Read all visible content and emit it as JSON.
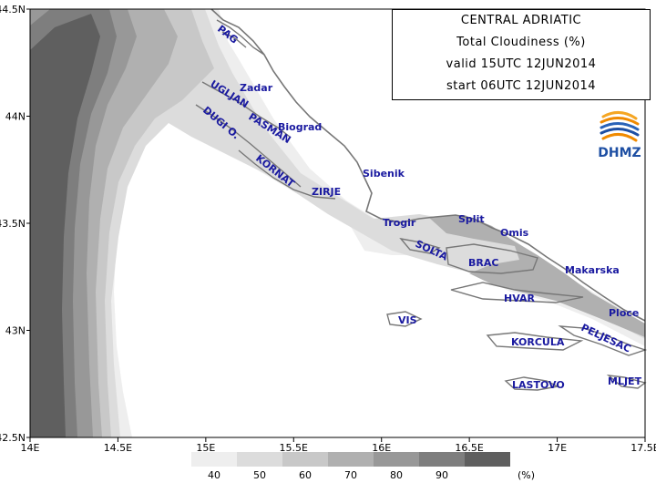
{
  "info_box": {
    "region": "CENTRAL ADRIATIC",
    "parameter": "Total Cloudiness (%)",
    "valid": "valid 15UTC 12JUN2014",
    "start": "start 06UTC 12JUN2014"
  },
  "logo": {
    "text": "DHMZ"
  },
  "axes": {
    "x_ticks": [
      "14E",
      "14.5E",
      "15E",
      "15.5E",
      "16E",
      "16.5E",
      "17E",
      "17.5E"
    ],
    "y_ticks": [
      "44.5N",
      "44N",
      "43.5N",
      "43N",
      "42.5N"
    ]
  },
  "places": [
    "PAG",
    "Zadar",
    "UGLJAN",
    "PASMAN",
    "Biograd",
    "DUGI O.",
    "KORNAT",
    "Sibenik",
    "ZIRJE",
    "Trogir",
    "Split",
    "Omis",
    "SOLTA",
    "BRAC",
    "Makarska",
    "HVAR",
    "VIS",
    "Ploce",
    "PELJESAC",
    "KORCULA",
    "LASTOVO",
    "MLJET"
  ],
  "legend": {
    "levels": [
      "40",
      "50",
      "60",
      "70",
      "80",
      "90"
    ],
    "unit": "(%)",
    "colors": [
      "#eeeeee",
      "#dcdcdc",
      "#c8c8c8",
      "#b0b0b0",
      "#989898",
      "#7e7e7e",
      "#5f5f5f"
    ]
  }
}
